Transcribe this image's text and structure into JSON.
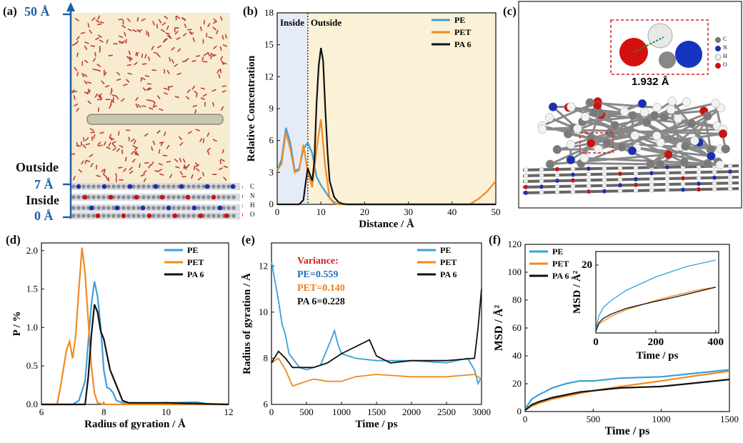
{
  "panels": {
    "a": {
      "letter": "(a)",
      "top_label": "50 Å",
      "outside_label": "Outside",
      "seven_label": "7 Å",
      "inside_label": "Inside",
      "zero_label": "0 Å",
      "legend": [
        "C",
        "N",
        "H",
        "O"
      ],
      "colors": {
        "background": "#f7ecd2",
        "water": "#c43b2b",
        "axis": "#1f5ea8"
      }
    },
    "b": {
      "letter": "(b)"
    },
    "c": {
      "letter": "(c)",
      "distance_label": "1.932  Å",
      "legend": [
        "C",
        "N",
        "H",
        "O"
      ],
      "colors": {
        "C": "#777777",
        "N": "#1a2fb0",
        "H": "#f0f0f0",
        "O": "#cc1111",
        "box": "#cc2222"
      }
    },
    "d": {
      "letter": "(d)"
    },
    "e": {
      "letter": "(e)",
      "variance_title": "Variance:",
      "variance_lines": [
        {
          "text": "PE=0.559",
          "color": "#1f6fc0"
        },
        {
          "text": "PET=0.140",
          "color": "#f07f1a"
        },
        {
          "text": "PA 6=0.228",
          "color": "#111111"
        }
      ],
      "variance_title_color": "#d42020"
    },
    "f": {
      "letter": "(f)"
    }
  },
  "chart_data": [
    {
      "id": "b",
      "type": "line",
      "xlabel": "Distance / Å",
      "ylabel": "Relative Concentration",
      "xlim": [
        0,
        50
      ],
      "ylim": [
        0,
        18
      ],
      "xticks": [
        0,
        10,
        20,
        30,
        40,
        50
      ],
      "yticks": [
        0,
        3,
        6,
        9,
        12,
        15,
        18
      ],
      "region_labels": [
        "Inside",
        "Outside"
      ],
      "divider_x": 7,
      "region_colors": {
        "inside": "#e6ecf7",
        "outside": "#fbf1d6"
      },
      "legend_position": "top-right",
      "series": [
        {
          "name": "PE",
          "color": "#3aa0dc",
          "x": [
            0,
            1,
            2,
            3,
            4,
            5,
            6,
            7,
            8,
            9,
            10,
            11,
            12,
            13,
            14,
            16,
            20,
            30,
            40,
            45,
            47,
            50
          ],
          "y": [
            3.2,
            4.2,
            7.2,
            5.8,
            3.2,
            3.3,
            5.2,
            5.8,
            4.8,
            2.6,
            1.8,
            1.2,
            0.6,
            0.2,
            0,
            0,
            0,
            0,
            0,
            0,
            0,
            0
          ]
        },
        {
          "name": "PET",
          "color": "#f28a1f",
          "x": [
            0,
            1,
            2,
            3,
            4,
            5,
            6,
            7,
            8,
            9,
            10,
            11,
            12,
            13,
            14,
            16,
            20,
            30,
            40,
            44,
            46,
            48,
            50
          ],
          "y": [
            3.2,
            3.8,
            6.8,
            5.2,
            3.0,
            3.2,
            5.6,
            3.0,
            1.6,
            5.2,
            8.0,
            3.5,
            0.6,
            0.1,
            0,
            0,
            0,
            0,
            0,
            0,
            0.5,
            1.2,
            2.2
          ]
        },
        {
          "name": "PA 6",
          "color": "#111111",
          "x": [
            0,
            5,
            6,
            6.5,
            7,
            7.5,
            8,
            8.5,
            9,
            9.5,
            10,
            10.5,
            11,
            11.5,
            12,
            13,
            14,
            15,
            16,
            20,
            50
          ],
          "y": [
            0,
            0,
            0.4,
            2.0,
            3.4,
            2.8,
            2.2,
            4.0,
            9.5,
            13.0,
            14.7,
            13.5,
            9.0,
            5.0,
            2.2,
            0.7,
            0.2,
            0.05,
            0,
            0,
            0
          ]
        }
      ]
    },
    {
      "id": "d",
      "type": "line",
      "xlabel": "Radius of gyration / Å",
      "ylabel": "P / %",
      "xlim": [
        6,
        12
      ],
      "ylim": [
        0,
        2.1
      ],
      "xticks": [
        6,
        8,
        10,
        12
      ],
      "yticks": [
        0.0,
        0.5,
        1.0,
        1.5,
        2.0
      ],
      "legend_position": "top-right",
      "series": [
        {
          "name": "PE",
          "color": "#3aa0dc",
          "x": [
            6,
            7.0,
            7.2,
            7.4,
            7.5,
            7.6,
            7.7,
            7.8,
            7.9,
            8.0,
            8.1,
            8.2,
            8.3,
            8.4,
            8.6,
            9.0,
            10,
            11,
            11.4,
            12
          ],
          "y": [
            0,
            0,
            0.05,
            0.3,
            0.8,
            1.3,
            1.6,
            1.4,
            1.0,
            0.45,
            0.22,
            0.2,
            0.15,
            0.05,
            0.02,
            0.02,
            0.02,
            0.03,
            0,
            0
          ]
        },
        {
          "name": "PET",
          "color": "#f28a1f",
          "x": [
            6,
            6.5,
            6.6,
            6.8,
            6.9,
            7.0,
            7.1,
            7.2,
            7.3,
            7.4,
            7.5,
            7.6,
            7.7,
            7.8,
            8.0,
            12
          ],
          "y": [
            0,
            0,
            0.2,
            0.7,
            0.82,
            0.6,
            0.9,
            1.5,
            2.04,
            1.7,
            1.1,
            0.5,
            0.15,
            0.02,
            0,
            0
          ]
        },
        {
          "name": "PA 6",
          "color": "#111111",
          "x": [
            6,
            7.4,
            7.5,
            7.6,
            7.7,
            7.8,
            7.9,
            8.0,
            8.1,
            8.2,
            8.3,
            8.4,
            8.5,
            8.6,
            8.8,
            9.0,
            9.5,
            10,
            11,
            12
          ],
          "y": [
            0,
            0,
            0.35,
            0.9,
            1.3,
            1.2,
            0.95,
            0.85,
            0.65,
            0.45,
            0.35,
            0.25,
            0.15,
            0.05,
            0.02,
            0.02,
            0.02,
            0.02,
            0.01,
            0
          ]
        }
      ]
    },
    {
      "id": "e",
      "type": "line",
      "xlabel": "Time / ps",
      "ylabel": "Radius of gyration / Å",
      "xlim": [
        0,
        3000
      ],
      "ylim": [
        6,
        13
      ],
      "xticks": [
        0,
        500,
        1000,
        1500,
        2000,
        2500,
        3000
      ],
      "yticks": [
        6,
        8,
        10,
        12
      ],
      "legend_position": "top-right",
      "series": [
        {
          "name": "PE",
          "color": "#3aa0dc",
          "x": [
            0,
            100,
            150,
            200,
            250,
            300,
            400,
            500,
            700,
            850,
            900,
            950,
            1000,
            1200,
            1500,
            2000,
            2500,
            2800,
            2900,
            2950,
            3000
          ],
          "y": [
            12.2,
            10.5,
            9.5,
            9.0,
            8.2,
            8.0,
            7.6,
            7.5,
            7.7,
            8.8,
            9.2,
            8.6,
            8.2,
            8.0,
            7.9,
            7.9,
            7.8,
            8.0,
            7.5,
            6.9,
            7.2
          ]
        },
        {
          "name": "PET",
          "color": "#f28a1f",
          "x": [
            0,
            100,
            200,
            300,
            400,
            600,
            800,
            1000,
            1200,
            1500,
            2000,
            2500,
            2900,
            3000
          ],
          "y": [
            7.8,
            8.0,
            7.5,
            6.8,
            6.9,
            7.1,
            7.0,
            7.0,
            7.2,
            7.3,
            7.2,
            7.2,
            7.3,
            7.1
          ]
        },
        {
          "name": "PA 6",
          "color": "#111111",
          "x": [
            0,
            100,
            200,
            300,
            400,
            600,
            800,
            1000,
            1200,
            1400,
            1500,
            1700,
            2000,
            2500,
            2900,
            2950,
            3000
          ],
          "y": [
            7.8,
            8.3,
            8.0,
            7.6,
            7.6,
            7.6,
            7.8,
            8.2,
            8.5,
            8.8,
            8.1,
            7.8,
            7.9,
            7.9,
            8.0,
            9.3,
            11.0
          ]
        }
      ]
    },
    {
      "id": "f",
      "type": "line",
      "xlabel": "Time / ps",
      "ylabel": "MSD / Å²",
      "xlim": [
        0,
        1500
      ],
      "ylim": [
        0,
        120
      ],
      "xticks": [
        0,
        500,
        1000,
        1500
      ],
      "yticks": [
        0,
        20,
        40,
        60,
        80,
        100,
        120
      ],
      "legend_position": "top-left",
      "series": [
        {
          "name": "PE",
          "color": "#3aa0dc",
          "x": [
            0,
            50,
            100,
            200,
            300,
            400,
            500,
            700,
            1000,
            1200,
            1500
          ],
          "y": [
            2,
            9,
            12,
            17,
            20,
            22,
            22,
            24,
            25,
            27,
            30
          ]
        },
        {
          "name": "PET",
          "color": "#f28a1f",
          "x": [
            0,
            50,
            100,
            200,
            300,
            400,
            500,
            700,
            1000,
            1200,
            1500
          ],
          "y": [
            1,
            4,
            6,
            9,
            11,
            13,
            15,
            18,
            22,
            25,
            29
          ]
        },
        {
          "name": "PA 6",
          "color": "#111111",
          "x": [
            0,
            50,
            100,
            200,
            300,
            400,
            500,
            700,
            1000,
            1200,
            1500
          ],
          "y": [
            1,
            5,
            7,
            10,
            12,
            14,
            15,
            17,
            18,
            20,
            23
          ]
        }
      ],
      "inset": {
        "xlabel": "Time / ps",
        "ylabel": "MSD / Å²",
        "xlim": [
          0,
          410
        ],
        "ylim": [
          0,
          24
        ],
        "xticks": [
          0,
          200,
          400
        ],
        "yticks": [
          20
        ],
        "series": [
          {
            "name": "PE",
            "color": "#3aa0dc",
            "x": [
              0,
              10,
              25,
              50,
              100,
              150,
              200,
              250,
              300,
              350,
              400
            ],
            "y": [
              1,
              5,
              7.5,
              9.5,
              12.5,
              14.5,
              16.5,
              18,
              19.5,
              20.5,
              21.5
            ]
          },
          {
            "name": "PET",
            "color": "#f28a1f",
            "x": [
              0,
              10,
              25,
              50,
              100,
              150,
              200,
              250,
              300,
              350,
              400
            ],
            "y": [
              0.5,
              2.5,
              3.5,
              4.8,
              6.8,
              8.2,
              9.6,
              10.8,
              11.8,
              12.8,
              13.5
            ]
          },
          {
            "name": "PA 6",
            "color": "#111111",
            "x": [
              0,
              10,
              25,
              50,
              100,
              150,
              200,
              250,
              300,
              350,
              400
            ],
            "y": [
              0.5,
              3,
              4.3,
              5.5,
              7.2,
              8.3,
              9.3,
              10.3,
              11.3,
              12.4,
              13.5
            ]
          }
        ]
      }
    }
  ]
}
